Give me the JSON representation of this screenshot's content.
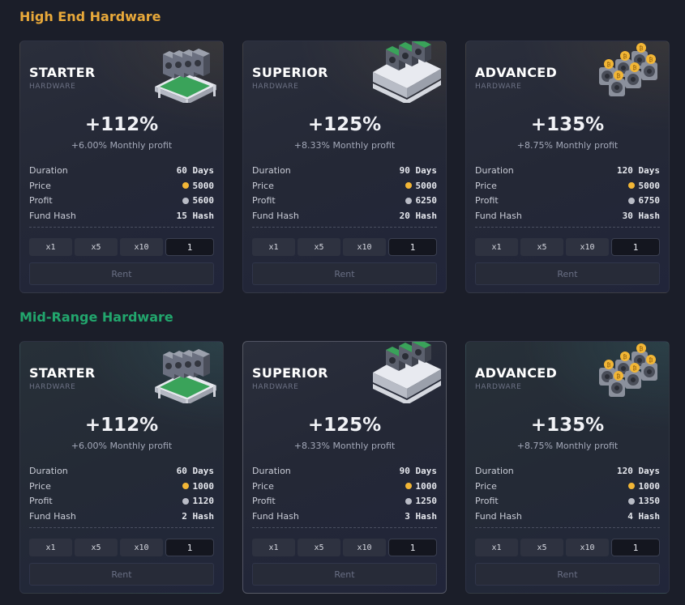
{
  "sections": [
    {
      "title": "High End Hardware",
      "title_color": "#e9a93a",
      "cards": [
        {
          "name": "STARTER",
          "sub": "HARDWARE",
          "pct": "+112%",
          "monthly": "+6.00% Monthly profit",
          "duration": "60 Days",
          "price": "5000",
          "profit": "5600",
          "hash": "15 Hash",
          "qty": "1",
          "rent": "Rent",
          "icon": "gpu-rig-icon"
        },
        {
          "name": "SUPERIOR",
          "sub": "HARDWARE",
          "pct": "+125%",
          "monthly": "+8.33% Monthly profit",
          "duration": "90 Days",
          "price": "5000",
          "profit": "6250",
          "hash": "20 Hash",
          "qty": "1",
          "rent": "Rent",
          "icon": "mining-rack-icon"
        },
        {
          "name": "ADVANCED",
          "sub": "HARDWARE",
          "pct": "+135%",
          "monthly": "+8.75% Monthly profit",
          "duration": "120 Days",
          "price": "5000",
          "profit": "6750",
          "hash": "30 Hash",
          "qty": "1",
          "rent": "Rent",
          "icon": "bitcoin-fans-icon"
        }
      ]
    },
    {
      "title": "Mid-Range Hardware",
      "title_color": "#22a66d",
      "cards": [
        {
          "name": "STARTER",
          "sub": "HARDWARE",
          "pct": "+112%",
          "monthly": "+6.00% Monthly profit",
          "duration": "60 Days",
          "price": "1000",
          "profit": "1120",
          "hash": "2 Hash",
          "qty": "1",
          "rent": "Rent",
          "icon": "gpu-rig-icon"
        },
        {
          "name": "SUPERIOR",
          "sub": "HARDWARE",
          "pct": "+125%",
          "monthly": "+8.33% Monthly profit",
          "duration": "90 Days",
          "price": "1000",
          "profit": "1250",
          "hash": "3 Hash",
          "qty": "1",
          "rent": "Rent",
          "icon": "mining-rack-icon"
        },
        {
          "name": "ADVANCED",
          "sub": "HARDWARE",
          "pct": "+135%",
          "monthly": "+8.75% Monthly profit",
          "duration": "120 Days",
          "price": "1000",
          "profit": "1350",
          "hash": "4 Hash",
          "qty": "1",
          "rent": "Rent",
          "icon": "bitcoin-fans-icon"
        }
      ]
    }
  ],
  "labels": {
    "duration": "Duration",
    "price": "Price",
    "profit": "Profit",
    "hash": "Fund Hash"
  },
  "quick_qty": [
    "x1",
    "x5",
    "x10"
  ],
  "colors": {
    "price_coin": "#f2b636",
    "profit_coin": "#b9bcc6"
  }
}
